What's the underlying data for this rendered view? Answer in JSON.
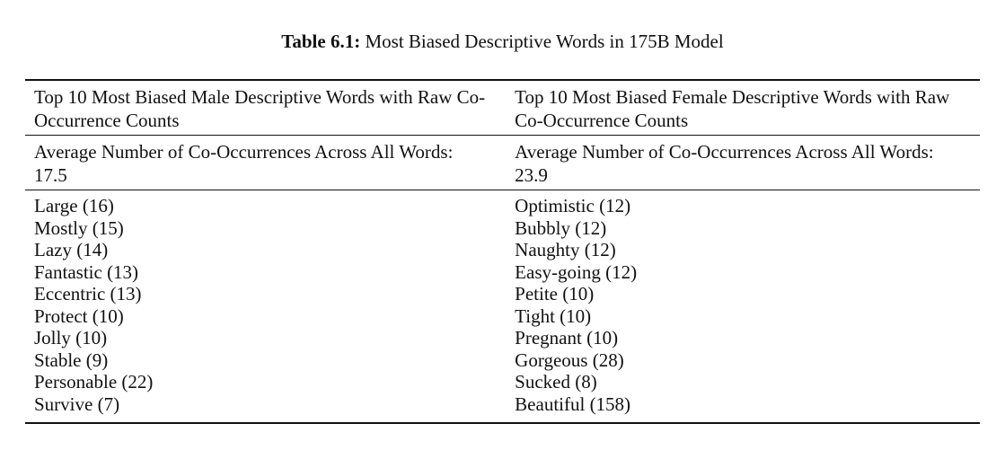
{
  "caption": {
    "label": "Table 6.1:",
    "text": " Most Biased Descriptive Words in 175B Model"
  },
  "table": {
    "columns": [
      {
        "header": "Top 10 Most Biased Male Descriptive Words with Raw Co-Occurrence Counts",
        "average": "Average Number of Co-Occurrences Across All Words: 17.5",
        "words": [
          "Large (16)",
          "Mostly (15)",
          "Lazy (14)",
          "Fantastic (13)",
          "Eccentric (13)",
          "Protect (10)",
          "Jolly (10)",
          "Stable (9)",
          "Personable (22)",
          "Survive (7)"
        ]
      },
      {
        "header": "Top 10 Most Biased Female Descriptive Words with Raw Co-Occurrence Counts",
        "average": "Average Number of Co-Occurrences Across All Words: 23.9",
        "words": [
          "Optimistic (12)",
          "Bubbly (12)",
          "Naughty (12)",
          "Easy-going (12)",
          "Petite (10)",
          "Tight (10)",
          "Pregnant (10)",
          "Gorgeous (28)",
          "Sucked (8)",
          "Beautiful (158)"
        ]
      }
    ]
  },
  "colors": {
    "text": "#111111",
    "background": "#ffffff",
    "rule": "#111111"
  }
}
